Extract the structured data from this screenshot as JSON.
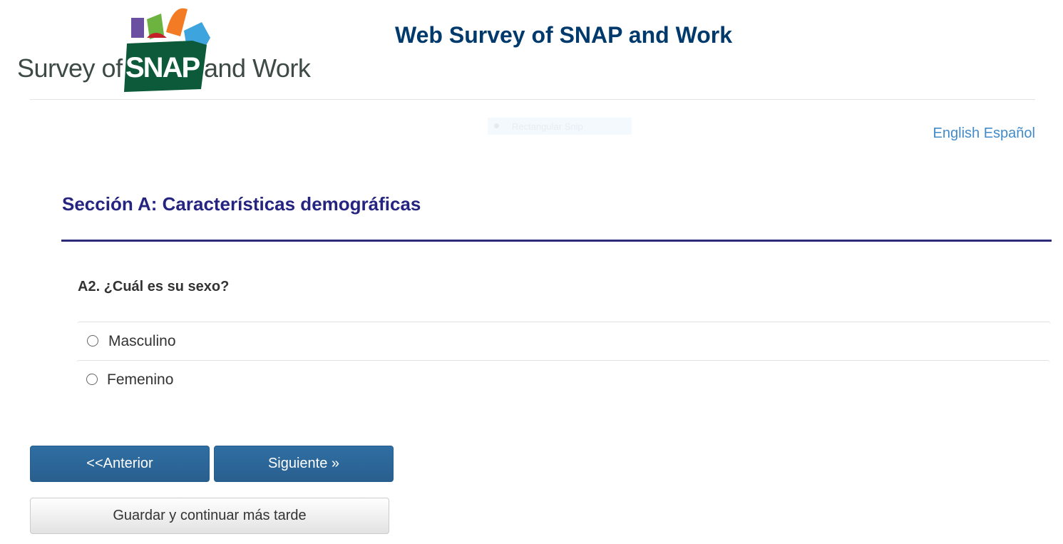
{
  "logo": {
    "text_left": "Survey of",
    "text_mid": "SNAP",
    "text_right": "and Work"
  },
  "header": {
    "title": "Web Survey of SNAP and Work"
  },
  "overlay": {
    "snip_label": "Rectangular Snip"
  },
  "language": {
    "english": "English",
    "spanish": "Español"
  },
  "section": {
    "title": "Sección A: Características demográficas"
  },
  "question": {
    "text": "A2. ¿Cuál es su sexo?",
    "options": [
      {
        "label": "Masculino",
        "selected": false
      },
      {
        "label": "Femenino",
        "selected": false
      }
    ]
  },
  "buttons": {
    "previous": "<<Anterior",
    "next": "Siguiente »",
    "save": "Guardar y continuar más tarde"
  },
  "colors": {
    "title": "#003a6c",
    "section": "#252480",
    "primary_button": "#2d6a9f",
    "link": "#428bca",
    "logo_green": "#0d5a3a"
  }
}
